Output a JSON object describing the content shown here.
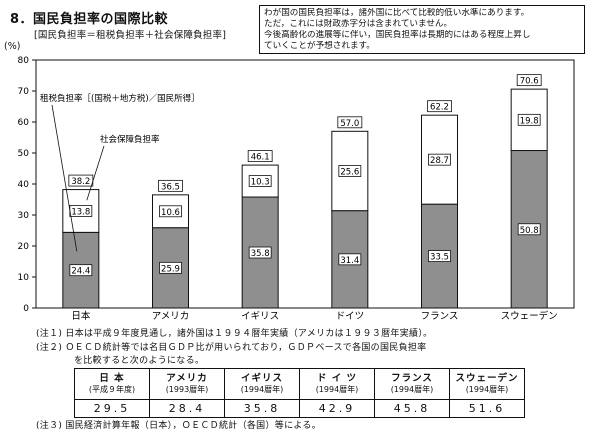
{
  "header": {
    "title": "8．国民負担率の国際比較",
    "formula": "[国民負担率＝租税負担率＋社会保障負担率]",
    "unit": "(%)"
  },
  "notebox": {
    "lines": [
      "わが国の国民負担率は，諸外国に比べて比較的低い水準にあります。",
      "ただ，これには財政赤字分は含まれていません。",
      "今後高齢化の進展等に伴い，国民負担率は長期的にはある程度上昇し",
      "ていくことが予想されます。"
    ]
  },
  "chart_data": {
    "type": "bar",
    "stacked": true,
    "categories": [
      "日本",
      "アメリカ",
      "イギリス",
      "ドイツ",
      "フランス",
      "スウェーデン"
    ],
    "series": [
      {
        "name": "租税負担率［(国税＋地方税)／国民所得］",
        "values": [
          24.4,
          25.9,
          35.8,
          31.4,
          33.5,
          50.8
        ],
        "color": "#8f8f8f"
      },
      {
        "name": "社会保障負担率",
        "values": [
          13.8,
          10.6,
          10.3,
          25.6,
          28.7,
          19.8
        ],
        "color": "#ffffff"
      }
    ],
    "totals": [
      38.2,
      36.5,
      46.1,
      57.0,
      62.2,
      70.6
    ],
    "total_labels": [
      "38.2",
      "36.5",
      "46.1",
      "57.0",
      "62.2",
      "70.6"
    ],
    "ylabel": "(%)",
    "ylim": [
      0,
      80
    ],
    "yticks": [
      0,
      10,
      20,
      30,
      40,
      50,
      60,
      70,
      80
    ],
    "grid": false,
    "legend": "annotation callouts on first bar"
  },
  "notes": {
    "note1": "(注１) 日本は平成９年度見通し，諸外国は１９９４暦年実績（アメリカは１９９３暦年実績）。",
    "note2a": "(注２) ＯＥＣＤ統計等では名目ＧＤＰ比が用いられており，ＧＤＰベースで各国の国民負担率",
    "note2b": "を比較すると次のようになる。",
    "note3": "(注３) 国民経済計算年報（日本），ＯＥＣＤ統計（各国）等による。"
  },
  "gdp_table": {
    "headers": [
      {
        "name": "日 本",
        "sub": "(平成９年度)"
      },
      {
        "name": "アメリカ",
        "sub": "(1993暦年)"
      },
      {
        "name": "イギリス",
        "sub": "(1994暦年)"
      },
      {
        "name": "ド イ ツ",
        "sub": "(1994暦年)"
      },
      {
        "name": "フランス",
        "sub": "(1994暦年)"
      },
      {
        "name": "スウェーデン",
        "sub": "(1994暦年)"
      }
    ],
    "values": [
      "29.5",
      "28.4",
      "35.8",
      "42.9",
      "45.8",
      "51.6"
    ]
  }
}
